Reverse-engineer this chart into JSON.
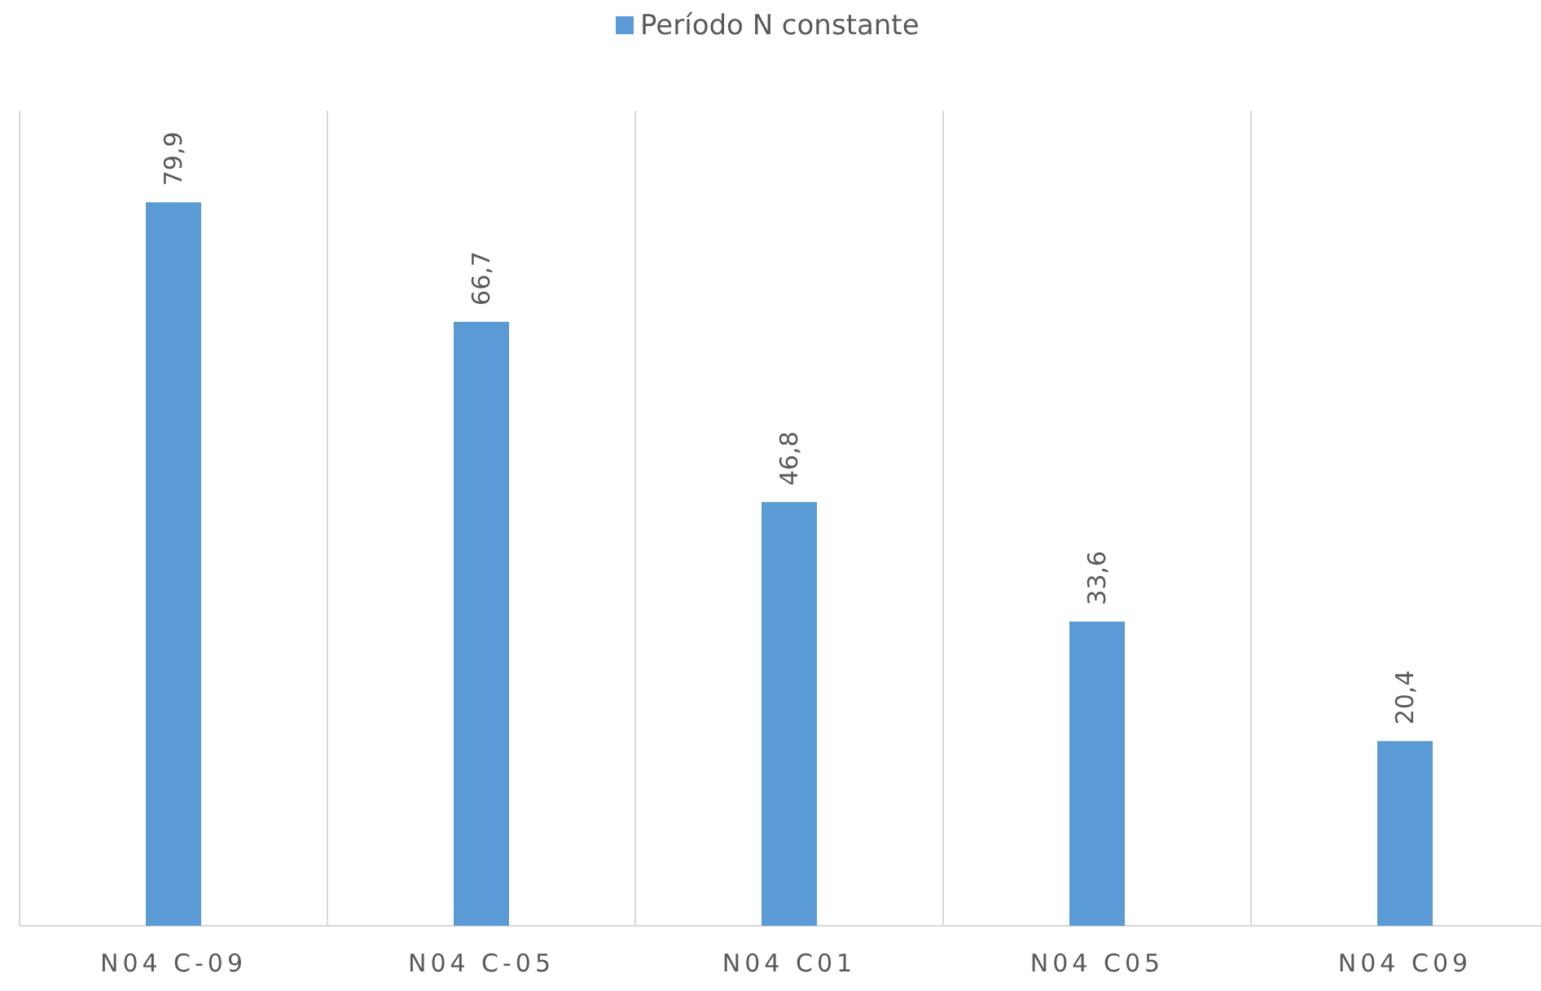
{
  "chart_data": {
    "type": "bar",
    "categories": [
      "N04 C-09",
      "N04 C-05",
      "N04 C01",
      "N04 C05",
      "N04 C09"
    ],
    "series": [
      {
        "name": "Período N constante",
        "color": "#5b9bd5",
        "values": [
          79.9,
          66.7,
          46.8,
          33.6,
          20.4
        ],
        "value_labels": [
          "79,9",
          "66,7",
          "46,8",
          "33,6",
          "20,4"
        ]
      }
    ],
    "ylim": [
      0,
      90
    ],
    "grid": "x",
    "legend": "top"
  }
}
